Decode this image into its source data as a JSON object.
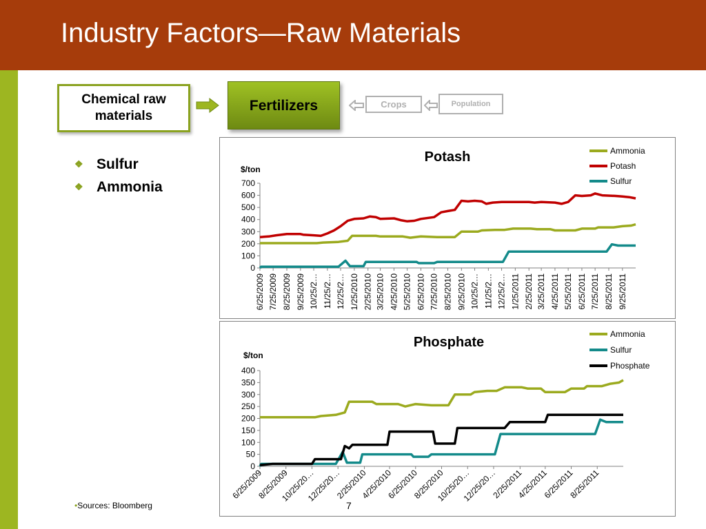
{
  "slide": {
    "title": "Industry Factors—Raw Materials",
    "sources_label": "Sources: Bloomberg",
    "page_number": "7"
  },
  "colors": {
    "header": "#A63C0B",
    "accent_green": "#9DB621",
    "ammonia": "#9BAA1E",
    "potash": "#C00000",
    "sulfur": "#138A8A",
    "phosphate": "#000000"
  },
  "flow": {
    "chemical_raw_materials": "Chemical raw materials",
    "fertilizers": "Fertilizers",
    "crops": "Crops",
    "population": "Population"
  },
  "bullets": [
    "Sulfur",
    "Ammonia"
  ],
  "chart_data": [
    {
      "type": "line",
      "title": "Potash",
      "ylabel": "$/ton",
      "ylim": [
        0,
        700
      ],
      "yticks": [
        0,
        100,
        200,
        300,
        400,
        500,
        600,
        700
      ],
      "x_range": [
        "6/25/2009",
        "10/25/2011"
      ],
      "xtick_labels": [
        "6/25/2009",
        "7/25/2009",
        "8/25/2009",
        "9/25/2009",
        "10/25/2…",
        "11/25/2…",
        "12/25/2…",
        "1/25/2010",
        "2/25/2010",
        "3/25/2010",
        "4/25/2010",
        "5/25/2010",
        "6/25/2010",
        "7/25/2010",
        "8/25/2010",
        "9/25/2010",
        "10/25/2…",
        "11/25/2…",
        "12/25/2…",
        "1/25/2011",
        "2/25/2011",
        "3/25/2011",
        "4/25/2011",
        "5/25/2011",
        "6/25/2011",
        "7/25/2011",
        "8/25/2011",
        "9/25/2011"
      ],
      "legend_position": "top-right",
      "series": [
        {
          "name": "Ammonia",
          "color": "#9BAA1E",
          "points": [
            [
              "6/25/2009",
              205
            ],
            [
              "11/1/2009",
              205
            ],
            [
              "11/15/2009",
              210
            ],
            [
              "12/20/2009",
              215
            ],
            [
              "1/10/2010",
              225
            ],
            [
              "1/20/2010",
              265
            ],
            [
              "3/15/2010",
              265
            ],
            [
              "3/25/2010",
              260
            ],
            [
              "5/15/2010",
              260
            ],
            [
              "6/1/2010",
              250
            ],
            [
              "6/25/2010",
              260
            ],
            [
              "8/1/2010",
              255
            ],
            [
              "9/10/2010",
              255
            ],
            [
              "9/25/2010",
              300
            ],
            [
              "11/1/2010",
              300
            ],
            [
              "11/10/2010",
              310
            ],
            [
              "12/10/2010",
              315
            ],
            [
              "1/1/2011",
              315
            ],
            [
              "1/20/2011",
              325
            ],
            [
              "3/1/2011",
              325
            ],
            [
              "3/15/2011",
              320
            ],
            [
              "4/15/2011",
              320
            ],
            [
              "4/25/2011",
              310
            ],
            [
              "6/10/2011",
              310
            ],
            [
              "6/25/2011",
              325
            ],
            [
              "7/25/2011",
              325
            ],
            [
              "8/1/2011",
              335
            ],
            [
              "9/5/2011",
              335
            ],
            [
              "9/25/2011",
              345
            ],
            [
              "10/15/2011",
              350
            ],
            [
              "10/25/2011",
              360
            ]
          ]
        },
        {
          "name": "Potash",
          "color": "#C00000",
          "points": [
            [
              "6/25/2009",
              255
            ],
            [
              "7/15/2009",
              260
            ],
            [
              "8/1/2009",
              270
            ],
            [
              "8/25/2009",
              280
            ],
            [
              "9/25/2009",
              280
            ],
            [
              "10/1/2009",
              275
            ],
            [
              "10/25/2009",
              270
            ],
            [
              "11/10/2009",
              265
            ],
            [
              "11/25/2009",
              285
            ],
            [
              "12/10/2009",
              310
            ],
            [
              "12/25/2009",
              345
            ],
            [
              "1/10/2010",
              390
            ],
            [
              "1/25/2010",
              405
            ],
            [
              "2/15/2010",
              410
            ],
            [
              "3/1/2010",
              425
            ],
            [
              "3/15/2010",
              420
            ],
            [
              "3/25/2010",
              405
            ],
            [
              "4/25/2010",
              410
            ],
            [
              "5/10/2010",
              395
            ],
            [
              "5/25/2010",
              385
            ],
            [
              "6/10/2010",
              390
            ],
            [
              "6/25/2010",
              405
            ],
            [
              "7/25/2010",
              420
            ],
            [
              "8/10/2010",
              460
            ],
            [
              "8/25/2010",
              470
            ],
            [
              "9/10/2010",
              480
            ],
            [
              "9/25/2010",
              555
            ],
            [
              "10/10/2010",
              550
            ],
            [
              "10/25/2010",
              555
            ],
            [
              "11/10/2010",
              550
            ],
            [
              "11/20/2010",
              530
            ],
            [
              "12/5/2010",
              540
            ],
            [
              "12/25/2010",
              545
            ],
            [
              "2/25/2011",
              545
            ],
            [
              "3/10/2011",
              540
            ],
            [
              "3/25/2011",
              545
            ],
            [
              "4/25/2011",
              540
            ],
            [
              "5/10/2011",
              530
            ],
            [
              "5/25/2011",
              545
            ],
            [
              "6/10/2011",
              600
            ],
            [
              "6/25/2011",
              595
            ],
            [
              "7/15/2011",
              600
            ],
            [
              "7/25/2011",
              615
            ],
            [
              "8/10/2011",
              600
            ],
            [
              "9/10/2011",
              595
            ],
            [
              "9/25/2011",
              590
            ],
            [
              "10/10/2011",
              585
            ],
            [
              "10/25/2011",
              575
            ]
          ]
        },
        {
          "name": "Sulfur",
          "color": "#138A8A",
          "points": [
            [
              "6/25/2009",
              0
            ],
            [
              "6/28/2009",
              10
            ],
            [
              "12/20/2009",
              10
            ],
            [
              "1/5/2010",
              60
            ],
            [
              "1/15/2010",
              15
            ],
            [
              "2/15/2010",
              15
            ],
            [
              "2/20/2010",
              50
            ],
            [
              "6/15/2010",
              50
            ],
            [
              "6/20/2010",
              40
            ],
            [
              "7/25/2010",
              40
            ],
            [
              "8/1/2010",
              50
            ],
            [
              "12/28/2010",
              50
            ],
            [
              "1/10/2011",
              135
            ],
            [
              "8/20/2011",
              135
            ],
            [
              "9/1/2011",
              195
            ],
            [
              "9/15/2011",
              185
            ],
            [
              "10/25/2011",
              185
            ]
          ]
        }
      ]
    },
    {
      "type": "line",
      "title": "Phosphate",
      "ylabel": "$/ton",
      "ylim": [
        0,
        400
      ],
      "yticks": [
        0,
        50,
        100,
        150,
        200,
        250,
        300,
        350,
        400
      ],
      "x_range": [
        "6/25/2009",
        "10/25/2011"
      ],
      "xtick_labels": [
        "6/25/2009",
        "8/25/2009",
        "10/25/20…",
        "12/25/20…",
        "2/25/2010",
        "4/25/2010",
        "6/25/2010",
        "8/25/2010",
        "10/25/20…",
        "12/25/20…",
        "2/25/2011",
        "4/25/2011",
        "6/25/2011",
        "8/25/2011"
      ],
      "legend_position": "top-right",
      "series": [
        {
          "name": "Ammonia",
          "color": "#9BAA1E",
          "points": [
            [
              "6/25/2009",
              205
            ],
            [
              "11/1/2009",
              205
            ],
            [
              "11/15/2009",
              210
            ],
            [
              "12/20/2009",
              215
            ],
            [
              "1/10/2010",
              225
            ],
            [
              "1/20/2010",
              270
            ],
            [
              "3/15/2010",
              270
            ],
            [
              "3/25/2010",
              260
            ],
            [
              "5/15/2010",
              260
            ],
            [
              "6/1/2010",
              250
            ],
            [
              "6/25/2010",
              260
            ],
            [
              "8/1/2010",
              255
            ],
            [
              "9/10/2010",
              255
            ],
            [
              "9/25/2010",
              300
            ],
            [
              "11/1/2010",
              300
            ],
            [
              "11/10/2010",
              310
            ],
            [
              "12/10/2010",
              315
            ],
            [
              "1/1/2011",
              315
            ],
            [
              "1/20/2011",
              330
            ],
            [
              "3/1/2011",
              330
            ],
            [
              "3/15/2011",
              325
            ],
            [
              "4/15/2011",
              325
            ],
            [
              "4/25/2011",
              310
            ],
            [
              "6/10/2011",
              310
            ],
            [
              "6/25/2011",
              325
            ],
            [
              "7/25/2011",
              325
            ],
            [
              "8/1/2011",
              335
            ],
            [
              "9/5/2011",
              335
            ],
            [
              "9/25/2011",
              345
            ],
            [
              "10/15/2011",
              350
            ],
            [
              "10/25/2011",
              360
            ]
          ]
        },
        {
          "name": "Sulfur",
          "color": "#138A8A",
          "points": [
            [
              "6/25/2009",
              0
            ],
            [
              "6/28/2009",
              10
            ],
            [
              "12/20/2009",
              10
            ],
            [
              "1/5/2010",
              60
            ],
            [
              "1/15/2010",
              15
            ],
            [
              "2/15/2010",
              15
            ],
            [
              "2/20/2010",
              50
            ],
            [
              "6/15/2010",
              50
            ],
            [
              "6/20/2010",
              40
            ],
            [
              "7/25/2010",
              40
            ],
            [
              "8/1/2010",
              50
            ],
            [
              "12/28/2010",
              50
            ],
            [
              "1/10/2011",
              135
            ],
            [
              "8/20/2011",
              135
            ],
            [
              "9/1/2011",
              195
            ],
            [
              "9/15/2011",
              185
            ],
            [
              "10/25/2011",
              185
            ]
          ]
        },
        {
          "name": "Phosphate",
          "color": "#000000",
          "points": [
            [
              "6/25/2009",
              5
            ],
            [
              "7/25/2009",
              10
            ],
            [
              "10/25/2009",
              10
            ],
            [
              "11/1/2009",
              30
            ],
            [
              "1/1/2010",
              30
            ],
            [
              "1/10/2010",
              85
            ],
            [
              "1/20/2010",
              75
            ],
            [
              "1/28/2010",
              90
            ],
            [
              "4/20/2010",
              90
            ],
            [
              "4/25/2010",
              145
            ],
            [
              "8/5/2010",
              145
            ],
            [
              "8/10/2010",
              95
            ],
            [
              "9/25/2010",
              95
            ],
            [
              "10/1/2010",
              160
            ],
            [
              "1/20/2011",
              160
            ],
            [
              "2/1/2011",
              185
            ],
            [
              "4/25/2011",
              185
            ],
            [
              "5/1/2011",
              215
            ],
            [
              "10/25/2011",
              215
            ]
          ]
        }
      ]
    }
  ]
}
